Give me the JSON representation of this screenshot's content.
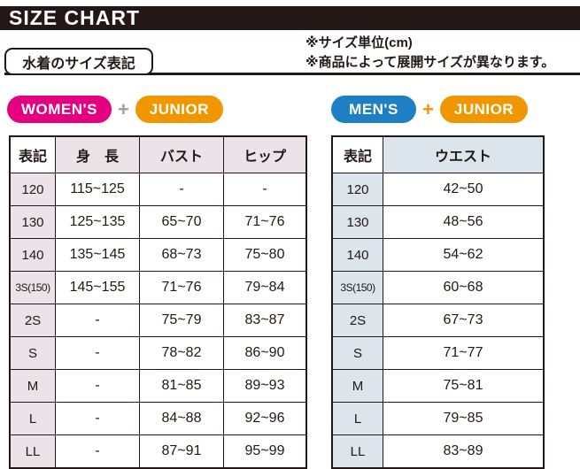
{
  "header": {
    "title": "SIZE CHART",
    "bar_color": "#231815",
    "text_color": "#FFFFFF"
  },
  "section_label": "水着のサイズ表記",
  "notes": {
    "unit": "※サイズ単位(cm)",
    "availability": "※商品によって展開サイズが異なります。"
  },
  "badge_groups": [
    {
      "name": "womens-junior",
      "items": [
        {
          "kind": "pill",
          "label": "WOMEN'S",
          "color": "#E4007F",
          "name": "womens-badge"
        },
        {
          "kind": "plus",
          "label": "+",
          "color": "#9E9E9F",
          "name": "plus-sign"
        },
        {
          "kind": "pill",
          "label": "JUNIOR",
          "color": "#F29600",
          "name": "junior-badge"
        }
      ]
    },
    {
      "name": "mens-junior",
      "items": [
        {
          "kind": "pill",
          "label": "MEN'S",
          "color": "#1E7FC4",
          "name": "mens-badge"
        },
        {
          "kind": "plus",
          "label": "+",
          "color": "#F29600",
          "name": "plus-sign"
        },
        {
          "kind": "pill",
          "label": "JUNIOR",
          "color": "#F29600",
          "name": "junior-badge"
        }
      ]
    }
  ],
  "tables": [
    {
      "name": "womens-size-table",
      "accent": "#ECE3E8",
      "columns": [
        "表記",
        "身　長",
        "バスト",
        "ヒップ"
      ],
      "rows": [
        [
          "120",
          "115~125",
          "-",
          "-"
        ],
        [
          "130",
          "125~135",
          "65~70",
          "71~76"
        ],
        [
          "140",
          "135~145",
          "68~73",
          "75~80"
        ],
        [
          "3S(150)",
          "145~155",
          "71~76",
          "79~84"
        ],
        [
          "2S",
          "-",
          "75~79",
          "83~87"
        ],
        [
          "S",
          "-",
          "78~82",
          "86~90"
        ],
        [
          "M",
          "-",
          "81~85",
          "89~93"
        ],
        [
          "L",
          "-",
          "84~88",
          "92~96"
        ],
        [
          "LL",
          "-",
          "87~91",
          "95~99"
        ]
      ]
    },
    {
      "name": "mens-size-table",
      "accent": "#DBE5EB",
      "columns": [
        "表記",
        "ウエスト"
      ],
      "rows": [
        [
          "120",
          "42~50"
        ],
        [
          "130",
          "48~56"
        ],
        [
          "140",
          "54~62"
        ],
        [
          "3S(150)",
          "60~68"
        ],
        [
          "2S",
          "67~73"
        ],
        [
          "S",
          "71~77"
        ],
        [
          "M",
          "75~81"
        ],
        [
          "L",
          "79~85"
        ],
        [
          "LL",
          "83~89"
        ]
      ]
    }
  ]
}
